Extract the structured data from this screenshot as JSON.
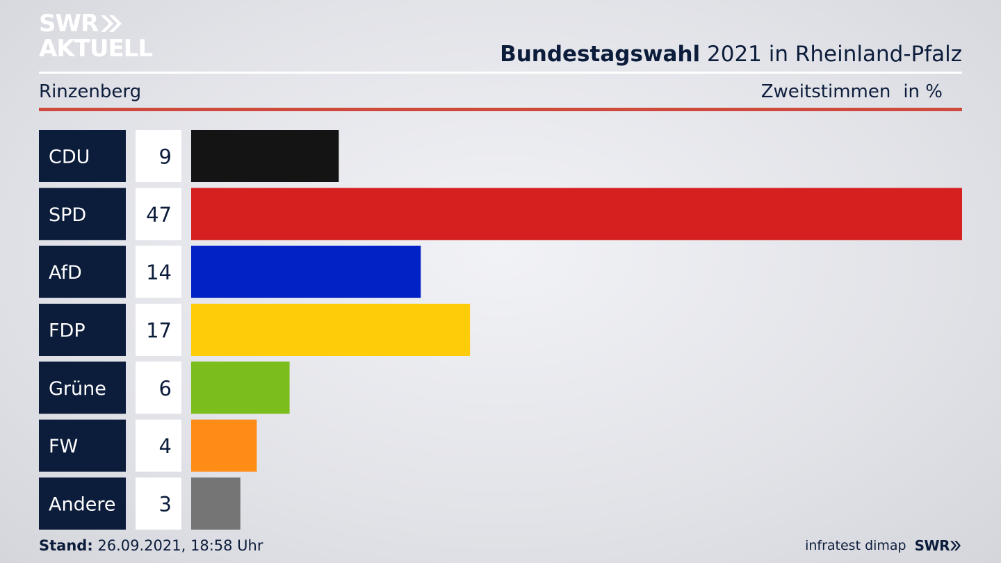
{
  "brand": {
    "line1": "SWR",
    "line2": "AKTUELL",
    "chevron_icon": "double-chevron-right-icon"
  },
  "header": {
    "title_bold": "Bundestagswahl",
    "title_rest": " 2021 in Rheinland-Pfalz",
    "location": "Rinzenberg",
    "metric": "Zweitstimmen",
    "unit": "in %"
  },
  "colors": {
    "accent_rule": "#cf4a3a",
    "label_bg": "#0c1c3b",
    "value_bg": "#ffffff"
  },
  "chart_data": {
    "type": "bar",
    "orientation": "horizontal",
    "categories": [
      "CDU",
      "SPD",
      "AfD",
      "FDP",
      "Grüne",
      "FW",
      "Andere"
    ],
    "values": [
      9,
      47,
      14,
      17,
      6,
      4,
      3
    ],
    "colors": [
      "#141414",
      "#d62020",
      "#0222c6",
      "#ffcc0a",
      "#7bbd1c",
      "#ff8c17",
      "#757575"
    ],
    "unit": "%",
    "xlim": [
      0,
      47
    ],
    "grid": false
  },
  "footer": {
    "stand_label": "Stand:",
    "stand_value": " 26.09.2021, 18:58 Uhr",
    "source": "infratest dimap",
    "swr": "SWR"
  }
}
